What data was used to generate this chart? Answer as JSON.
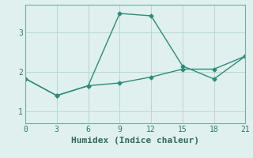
{
  "xlabel": "Humidex (Indice chaleur)",
  "ylabel": "",
  "xlim": [
    0,
    21
  ],
  "ylim": [
    0.7,
    3.7
  ],
  "xticks": [
    0,
    3,
    6,
    9,
    12,
    15,
    18,
    21
  ],
  "yticks": [
    1,
    2,
    3
  ],
  "line1_x": [
    0,
    3,
    6,
    9,
    12,
    15,
    18,
    21
  ],
  "line1_y": [
    1.83,
    1.4,
    1.65,
    3.48,
    3.42,
    2.15,
    1.82,
    2.4
  ],
  "line2_x": [
    0,
    3,
    6,
    9,
    12,
    15,
    18,
    21
  ],
  "line2_y": [
    1.83,
    1.4,
    1.65,
    1.72,
    1.87,
    2.07,
    2.07,
    2.4
  ],
  "line_color": "#2e8b7a",
  "bg_color": "#dff0ee",
  "grid_color": "#b8d8d4",
  "marker": "D",
  "markersize": 2.5,
  "linewidth": 1.0,
  "tick_fontsize": 7,
  "label_fontsize": 8
}
